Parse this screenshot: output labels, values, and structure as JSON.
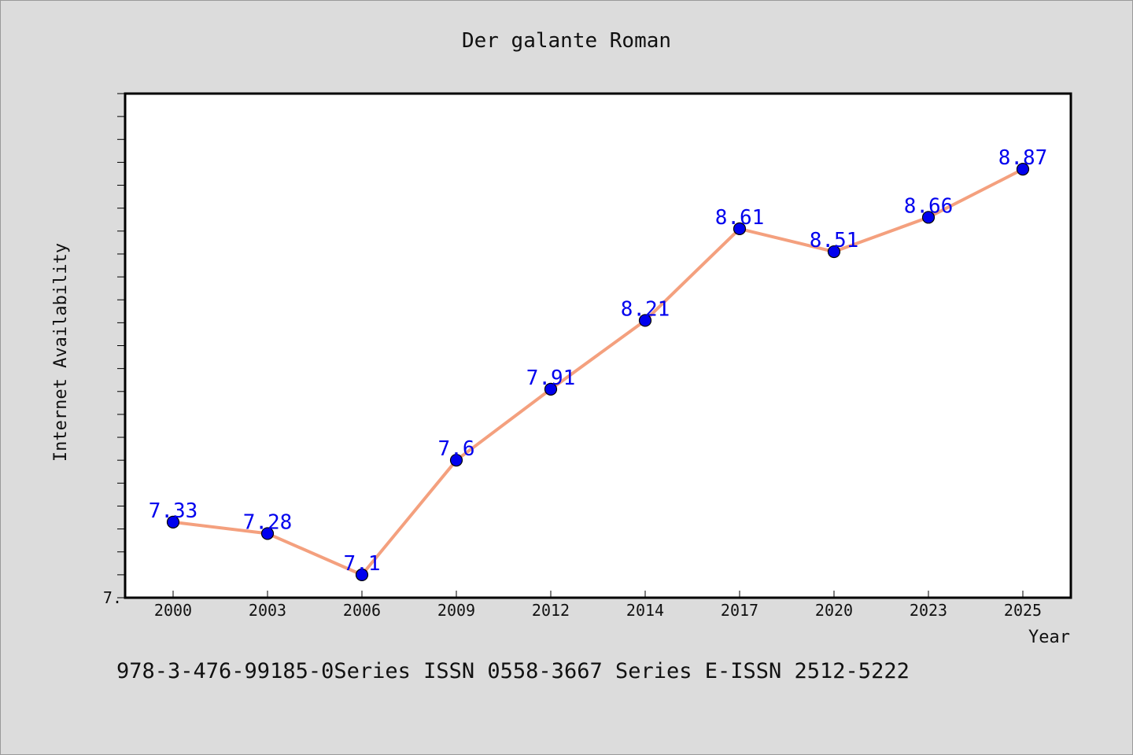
{
  "chart_data": {
    "type": "line",
    "title": "Der galante Roman",
    "xlabel": "Year",
    "ylabel": "Internet Availability",
    "x": [
      "2000",
      "2003",
      "2006",
      "2009",
      "2012",
      "2014",
      "2017",
      "2020",
      "2023",
      "2025"
    ],
    "series": [
      {
        "values": [
          7.33,
          7.28,
          7.1,
          7.6,
          7.91,
          8.21,
          8.61,
          8.51,
          8.66,
          8.87
        ],
        "data_labels": [
          "7.33",
          "7.28",
          "7.1",
          "7.6",
          "7.91",
          "8.21",
          "8.61",
          "8.51",
          "8.66",
          "8.87"
        ],
        "line_color": "#f4a07e",
        "marker_color": "#0000ee"
      }
    ],
    "ylim": [
      7.0,
      9.2
    ],
    "y_tick_labels": [
      "7."
    ],
    "grid": false
  },
  "footer_text": "978-3-476-99185-0Series ISSN 0558-3667 Series E-ISSN 2512-5222",
  "colors": {
    "background": "#dcdcdc",
    "plot_background": "#ffffff",
    "line": "#f4a07e",
    "marker": "#0000ee",
    "label": "#0000ee"
  }
}
